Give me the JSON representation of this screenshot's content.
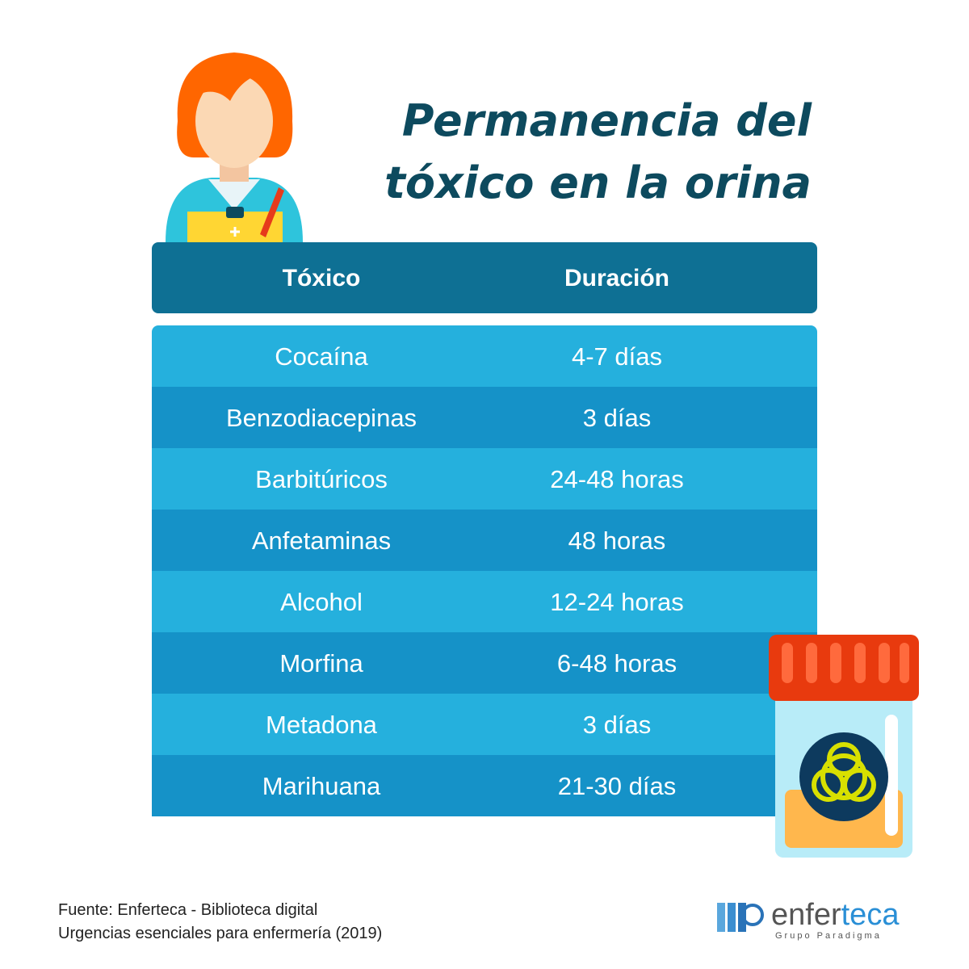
{
  "title": [
    "Permanencia del",
    "tóxico en la orina"
  ],
  "table": {
    "headers": [
      "Tóxico",
      "Duración"
    ],
    "rows": [
      [
        "Cocaína",
        "4-7 días"
      ],
      [
        "Benzodiacepinas",
        "3 días"
      ],
      [
        "Barbitúricos",
        "24-48 horas"
      ],
      [
        "Anfetaminas",
        "48 horas"
      ],
      [
        "Alcohol",
        "12-24 horas"
      ],
      [
        "Morfina",
        "6-48 horas"
      ],
      [
        "Metadona",
        "3 días"
      ],
      [
        "Marihuana",
        "21-30 días"
      ]
    ]
  },
  "footer": [
    "Fuente: Enferteca - Biblioteca digital",
    "Urgencias esenciales para enfermería (2019)"
  ],
  "logo": {
    "name": [
      "enfer",
      "teca"
    ],
    "tagline": "Grupo Paradigma"
  }
}
